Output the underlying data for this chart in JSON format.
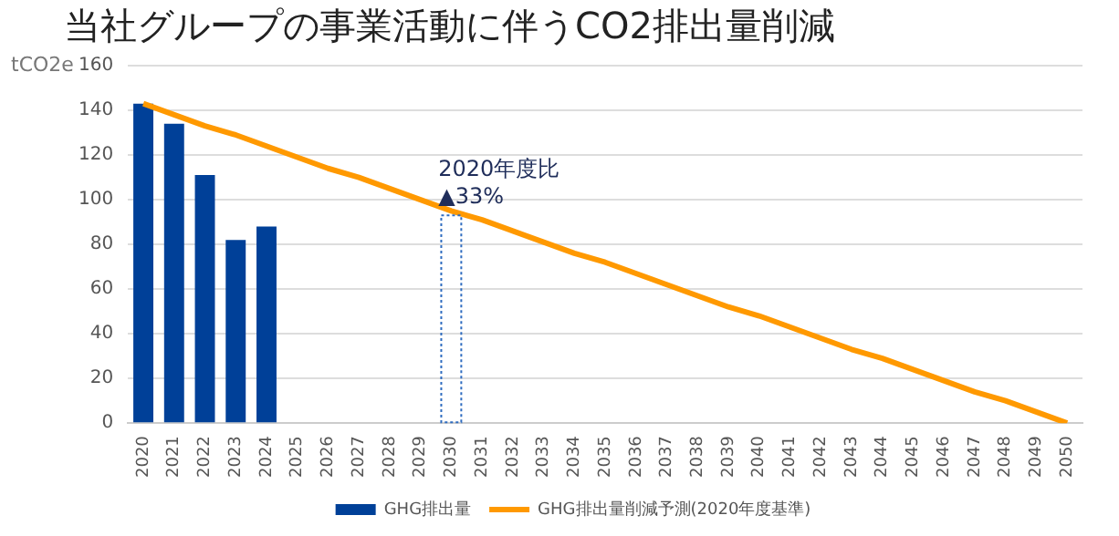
{
  "chart_data": {
    "type": "bar",
    "title": "当社グループの事業活動に伴うCO2排出量削減",
    "ylabel": "tCO2e",
    "categories": [
      "2020",
      "2021",
      "2022",
      "2023",
      "2024",
      "2025",
      "2026",
      "2027",
      "2028",
      "2029",
      "2030",
      "2031",
      "2032",
      "2033",
      "2034",
      "2035",
      "2036",
      "2037",
      "2038",
      "2039",
      "2040",
      "2041",
      "2042",
      "2043",
      "2044",
      "2045",
      "2046",
      "2047",
      "2048",
      "2049",
      "2050"
    ],
    "series": [
      {
        "name": "GHG排出量",
        "color": "#004098",
        "values": [
          143,
          134,
          111,
          82,
          88,
          null,
          null,
          null,
          null,
          null,
          null,
          null,
          null,
          null,
          null,
          null,
          null,
          null,
          null,
          null,
          null,
          null,
          null,
          null,
          null,
          null,
          null,
          null,
          null,
          null,
          null
        ]
      },
      {
        "name": "GHG排出量削減予測(2020年度基準)",
        "type": "line",
        "color": "#ff9900",
        "values": [
          143,
          138,
          133,
          129,
          124,
          119,
          114,
          110,
          105,
          100,
          95,
          91,
          86,
          81,
          76,
          72,
          67,
          62,
          57,
          52,
          48,
          43,
          38,
          33,
          29,
          24,
          19,
          14,
          10,
          5,
          0
        ]
      },
      {
        "color": "#2f6cc0",
        "line_style": "dotted",
        "values": [
          null,
          null,
          null,
          null,
          null,
          null,
          null,
          null,
          null,
          null,
          93,
          null,
          null,
          null,
          null,
          null,
          null,
          null,
          null,
          null,
          null,
          null,
          null,
          null,
          null,
          null,
          null,
          null,
          null,
          null,
          null
        ]
      }
    ],
    "ylim": [
      0,
      160
    ],
    "yticks": [
      0,
      20,
      40,
      60,
      80,
      100,
      120,
      140,
      160
    ],
    "grid": "y",
    "legend": "bottom",
    "marker": "none",
    "annotations": [
      {
        "text": "2020年度比\n▲33%",
        "x": "2030",
        "y": 95
      }
    ]
  }
}
